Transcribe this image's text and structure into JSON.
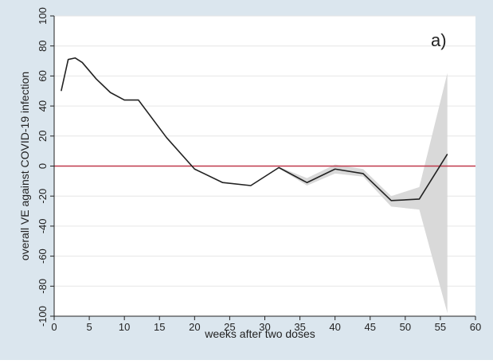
{
  "chart_data": {
    "type": "line",
    "panel_label": "a)",
    "xlabel": "weeks after two doses",
    "ylabel": "overall VE against COVID-19 infection",
    "xlim": [
      0,
      60
    ],
    "ylim": [
      -100,
      100
    ],
    "xticks": [
      "0",
      "5",
      "10",
      "15",
      "20",
      "25",
      "30",
      "35",
      "40",
      "45",
      "50",
      "55",
      "60"
    ],
    "yticks": [
      "-100",
      "-80",
      "-60",
      "-40",
      "-20",
      "0",
      "20",
      "40",
      "60",
      "80",
      "100"
    ],
    "reference_line": {
      "y": 0,
      "color": "#c0394b"
    },
    "grid": "horizontal",
    "colors": {
      "frame": "#dbe6ee",
      "plot_background": "#ffffff",
      "line": "#222222",
      "confidence_band": "#d9d9d9",
      "grid": "#e6e6e6"
    },
    "series": [
      {
        "x": [
          1,
          2,
          3,
          4,
          6,
          8,
          10,
          12,
          16,
          20,
          24,
          28,
          32,
          36,
          40,
          44,
          48,
          52,
          56
        ],
        "y": [
          50,
          71,
          72,
          69,
          58,
          49,
          44,
          44,
          19,
          -2,
          -11,
          -13,
          -1,
          -11,
          -2,
          -5,
          -23,
          -22,
          8
        ],
        "lower": [
          50,
          71,
          72,
          69,
          58,
          49,
          44,
          44,
          19,
          -2,
          -11,
          -13,
          -1.5,
          -13,
          -5,
          -7,
          -27,
          -29,
          -98
        ],
        "upper": [
          50,
          71,
          72,
          69,
          58,
          49,
          44,
          44,
          19,
          -2,
          -11,
          -13,
          -0.5,
          -8,
          1,
          -2,
          -20,
          -14,
          62
        ]
      }
    ]
  }
}
